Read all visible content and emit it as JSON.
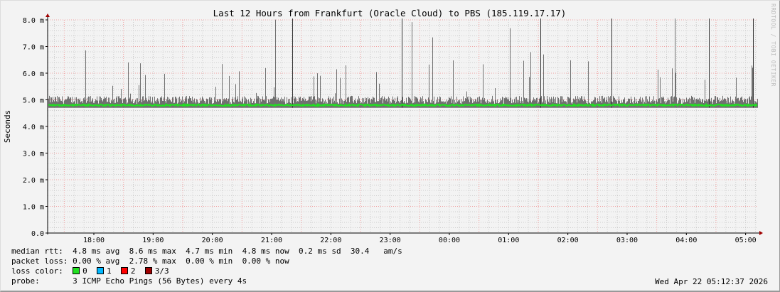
{
  "chart_data": {
    "type": "line",
    "title": "Last 12 Hours from Frankfurt (Oracle Cloud) to PBS (185.119.17.17)",
    "ylabel": "Seconds",
    "ylim": [
      0,
      8.0
    ],
    "yticks": [
      "0.0",
      "1.0 m",
      "2.0 m",
      "3.0 m",
      "4.0 m",
      "5.0 m",
      "6.0 m",
      "7.0 m",
      "8.0 m"
    ],
    "xticks": [
      "18:00",
      "19:00",
      "20:00",
      "21:00",
      "22:00",
      "23:00",
      "00:00",
      "01:00",
      "02:00",
      "03:00",
      "04:00",
      "05:00"
    ],
    "grid": true,
    "series": [
      {
        "name": "median rtt",
        "color": "#20e020",
        "typical_ms": 4.8
      },
      {
        "name": "smoke",
        "color": "#707070",
        "max_ms": 8.6,
        "min_ms": 4.7
      }
    ]
  },
  "watermark": "RRDTOOL / TOBI OETIKER",
  "legend": {
    "rtt": {
      "label": "median rtt:",
      "avg": "4.8 ms avg",
      "max": "8.6 ms max",
      "min": "4.7 ms min",
      "now": "4.8 ms now",
      "sd": "0.2 ms sd",
      "ams": "30.4",
      "ams_unit": "am/s"
    },
    "loss": {
      "label": "packet loss:",
      "avg": "0.00 % avg",
      "max": "2.78 % max",
      "min": "0.00 % min",
      "now": "0.00 % now"
    },
    "loss_color": {
      "label": "loss color:",
      "items": [
        {
          "label": "0",
          "color": "#20e020"
        },
        {
          "label": "1",
          "color": "#00b8ff"
        },
        {
          "label": "2",
          "color": "#ff0000"
        },
        {
          "label": "3/3",
          "color": "#a00000"
        }
      ]
    },
    "probe": {
      "label": "probe:",
      "value": "3 ICMP Echo Pings (56 Bytes) every 4s"
    }
  },
  "timestamp": "Wed Apr 22 05:12:37 2026"
}
